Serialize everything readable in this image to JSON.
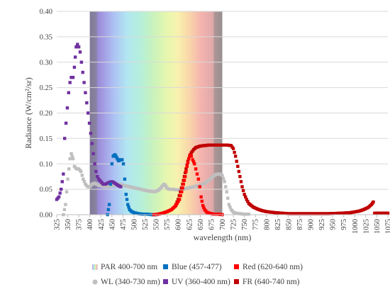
{
  "chart_data": {
    "type": "scatter",
    "title": "",
    "xlabel": "wavelength (nm)",
    "ylabel": "Radiance (W/cm²/sr)",
    "xlim": [
      325,
      1075
    ],
    "ylim": [
      0,
      0.4
    ],
    "grid": true,
    "legend_position": "bottom",
    "x_ticks": [
      "325",
      "350",
      "375",
      "400",
      "425",
      "450",
      "475",
      "500",
      "525",
      "550",
      "575",
      "600",
      "625",
      "650",
      "675",
      "700",
      "725",
      "750",
      "775",
      "800",
      "825",
      "850",
      "875",
      "900",
      "925",
      "950",
      "975",
      "1000",
      "1025",
      "1050",
      "1075"
    ],
    "y_ticks": [
      "0.00",
      "0.05",
      "0.10",
      "0.15",
      "0.20",
      "0.25",
      "0.30",
      "0.35",
      "0.40"
    ],
    "par_band": {
      "name": "PAR 400-700 nm",
      "x_start": 400,
      "x_end": 700,
      "color": "#c9c9c9"
    },
    "series": [
      {
        "name": "WL (340-730 nm)",
        "color": "#bfbfbf",
        "points": [
          [
            340,
            0.0
          ],
          [
            345,
            0.02
          ],
          [
            350,
            0.07
          ],
          [
            355,
            0.11
          ],
          [
            358,
            0.12
          ],
          [
            362,
            0.11
          ],
          [
            365,
            0.095
          ],
          [
            370,
            0.09
          ],
          [
            375,
            0.09
          ],
          [
            380,
            0.085
          ],
          [
            385,
            0.07
          ],
          [
            390,
            0.06
          ],
          [
            395,
            0.055
          ],
          [
            400,
            0.055
          ],
          [
            405,
            0.06
          ],
          [
            410,
            0.062
          ],
          [
            415,
            0.06
          ],
          [
            420,
            0.058
          ],
          [
            425,
            0.057
          ],
          [
            430,
            0.056
          ],
          [
            435,
            0.055
          ],
          [
            440,
            0.055
          ],
          [
            445,
            0.056
          ],
          [
            450,
            0.057
          ],
          [
            455,
            0.058
          ],
          [
            460,
            0.059
          ],
          [
            465,
            0.06
          ],
          [
            470,
            0.059
          ],
          [
            475,
            0.058
          ],
          [
            480,
            0.057
          ],
          [
            485,
            0.056
          ],
          [
            490,
            0.055
          ],
          [
            495,
            0.054
          ],
          [
            500,
            0.053
          ],
          [
            505,
            0.052
          ],
          [
            510,
            0.051
          ],
          [
            515,
            0.05
          ],
          [
            520,
            0.049
          ],
          [
            525,
            0.048
          ],
          [
            530,
            0.047
          ],
          [
            535,
            0.046
          ],
          [
            540,
            0.046
          ],
          [
            545,
            0.045
          ],
          [
            550,
            0.046
          ],
          [
            555,
            0.048
          ],
          [
            560,
            0.052
          ],
          [
            565,
            0.057
          ],
          [
            568,
            0.06
          ],
          [
            571,
            0.058
          ],
          [
            575,
            0.052
          ],
          [
            580,
            0.05
          ],
          [
            585,
            0.05
          ],
          [
            590,
            0.05
          ],
          [
            595,
            0.049
          ],
          [
            600,
            0.049
          ],
          [
            605,
            0.049
          ],
          [
            610,
            0.05
          ],
          [
            615,
            0.051
          ],
          [
            620,
            0.052
          ],
          [
            625,
            0.053
          ],
          [
            630,
            0.054
          ],
          [
            635,
            0.055
          ],
          [
            640,
            0.056
          ],
          [
            645,
            0.057
          ],
          [
            650,
            0.058
          ],
          [
            655,
            0.06
          ],
          [
            660,
            0.062
          ],
          [
            665,
            0.065
          ],
          [
            670,
            0.068
          ],
          [
            675,
            0.072
          ],
          [
            680,
            0.076
          ],
          [
            685,
            0.079
          ],
          [
            690,
            0.08
          ],
          [
            695,
            0.08
          ],
          [
            700,
            0.077
          ],
          [
            705,
            0.065
          ],
          [
            710,
            0.045
          ],
          [
            715,
            0.02
          ],
          [
            720,
            0.01
          ],
          [
            725,
            0.005
          ],
          [
            730,
            0.003
          ],
          [
            740,
            0.002
          ],
          [
            750,
            0.001
          ],
          [
            760,
            0.001
          ]
        ]
      },
      {
        "name": "UV (360-400 nm)",
        "color": "#7030a0",
        "points": [
          [
            325,
            0.03
          ],
          [
            330,
            0.035
          ],
          [
            335,
            0.05
          ],
          [
            340,
            0.08
          ],
          [
            343,
            0.15
          ],
          [
            346,
            0.18
          ],
          [
            349,
            0.21
          ],
          [
            352,
            0.24
          ],
          [
            355,
            0.26
          ],
          [
            358,
            0.27
          ],
          [
            362,
            0.27
          ],
          [
            365,
            0.29
          ],
          [
            367,
            0.31
          ],
          [
            369,
            0.33
          ],
          [
            372,
            0.335
          ],
          [
            375,
            0.33
          ],
          [
            378,
            0.32
          ],
          [
            381,
            0.3
          ],
          [
            384,
            0.28
          ],
          [
            387,
            0.26
          ],
          [
            390,
            0.24
          ],
          [
            393,
            0.22
          ],
          [
            396,
            0.2
          ],
          [
            399,
            0.18
          ],
          [
            402,
            0.16
          ],
          [
            405,
            0.14
          ],
          [
            408,
            0.12
          ],
          [
            411,
            0.1
          ],
          [
            414,
            0.085
          ],
          [
            417,
            0.075
          ],
          [
            420,
            0.07
          ],
          [
            425,
            0.065
          ],
          [
            430,
            0.06
          ],
          [
            435,
            0.06
          ],
          [
            440,
            0.062
          ],
          [
            445,
            0.064
          ],
          [
            450,
            0.065
          ],
          [
            455,
            0.063
          ],
          [
            460,
            0.06
          ],
          [
            465,
            0.057
          ],
          [
            470,
            0.055
          ]
        ]
      },
      {
        "name": "Blue (457-477)",
        "color": "#0070c0",
        "points": [
          [
            440,
            0.0
          ],
          [
            444,
            0.02
          ],
          [
            447,
            0.06
          ],
          [
            450,
            0.1
          ],
          [
            453,
            0.115
          ],
          [
            457,
            0.118
          ],
          [
            461,
            0.112
          ],
          [
            465,
            0.106
          ],
          [
            469,
            0.108
          ],
          [
            473,
            0.108
          ],
          [
            476,
            0.1
          ],
          [
            479,
            0.07
          ],
          [
            482,
            0.04
          ],
          [
            486,
            0.02
          ],
          [
            490,
            0.01
          ],
          [
            495,
            0.006
          ],
          [
            500,
            0.004
          ],
          [
            510,
            0.002
          ],
          [
            520,
            0.001
          ],
          [
            530,
            0.001
          ],
          [
            540,
            0.0
          ],
          [
            550,
            0.0
          ]
        ]
      },
      {
        "name": "Red (620-640 nm)",
        "color": "#ff0000",
        "points": [
          [
            545,
            0.0
          ],
          [
            555,
            0.001
          ],
          [
            565,
            0.003
          ],
          [
            575,
            0.006
          ],
          [
            585,
            0.01
          ],
          [
            595,
            0.018
          ],
          [
            603,
            0.03
          ],
          [
            608,
            0.045
          ],
          [
            612,
            0.06
          ],
          [
            616,
            0.075
          ],
          [
            620,
            0.095
          ],
          [
            624,
            0.11
          ],
          [
            627,
            0.117
          ],
          [
            630,
            0.115
          ],
          [
            633,
            0.108
          ],
          [
            637,
            0.1
          ],
          [
            640,
            0.09
          ],
          [
            643,
            0.08
          ],
          [
            646,
            0.07
          ],
          [
            649,
            0.055
          ],
          [
            652,
            0.035
          ],
          [
            656,
            0.018
          ],
          [
            660,
            0.01
          ],
          [
            665,
            0.005
          ],
          [
            670,
            0.003
          ],
          [
            680,
            0.001
          ],
          [
            690,
            0.001
          ],
          [
            700,
            0.0
          ]
        ]
      },
      {
        "name": "FR (640-740 nm)",
        "color": "#c00000",
        "points": [
          [
            595,
            0.02
          ],
          [
            600,
            0.03
          ],
          [
            605,
            0.045
          ],
          [
            610,
            0.06
          ],
          [
            614,
            0.075
          ],
          [
            618,
            0.09
          ],
          [
            622,
            0.105
          ],
          [
            626,
            0.115
          ],
          [
            630,
            0.122
          ],
          [
            635,
            0.128
          ],
          [
            640,
            0.132
          ],
          [
            650,
            0.135
          ],
          [
            660,
            0.136
          ],
          [
            670,
            0.137
          ],
          [
            680,
            0.137
          ],
          [
            690,
            0.137
          ],
          [
            700,
            0.137
          ],
          [
            710,
            0.137
          ],
          [
            720,
            0.136
          ],
          [
            725,
            0.13
          ],
          [
            730,
            0.115
          ],
          [
            735,
            0.095
          ],
          [
            740,
            0.075
          ],
          [
            745,
            0.055
          ],
          [
            750,
            0.04
          ],
          [
            755,
            0.03
          ],
          [
            760,
            0.022
          ],
          [
            770,
            0.015
          ],
          [
            780,
            0.011
          ],
          [
            790,
            0.008
          ],
          [
            800,
            0.006
          ],
          [
            820,
            0.004
          ],
          [
            850,
            0.002
          ],
          [
            880,
            0.002
          ],
          [
            910,
            0.002
          ],
          [
            940,
            0.002
          ],
          [
            970,
            0.003
          ],
          [
            990,
            0.004
          ],
          [
            1010,
            0.007
          ],
          [
            1020,
            0.01
          ],
          [
            1030,
            0.014
          ],
          [
            1038,
            0.02
          ],
          [
            1042,
            0.025
          ],
          [
            1045,
            0.003
          ],
          [
            1050,
            0.003
          ],
          [
            1060,
            0.003
          ],
          [
            1075,
            0.003
          ]
        ]
      }
    ]
  }
}
